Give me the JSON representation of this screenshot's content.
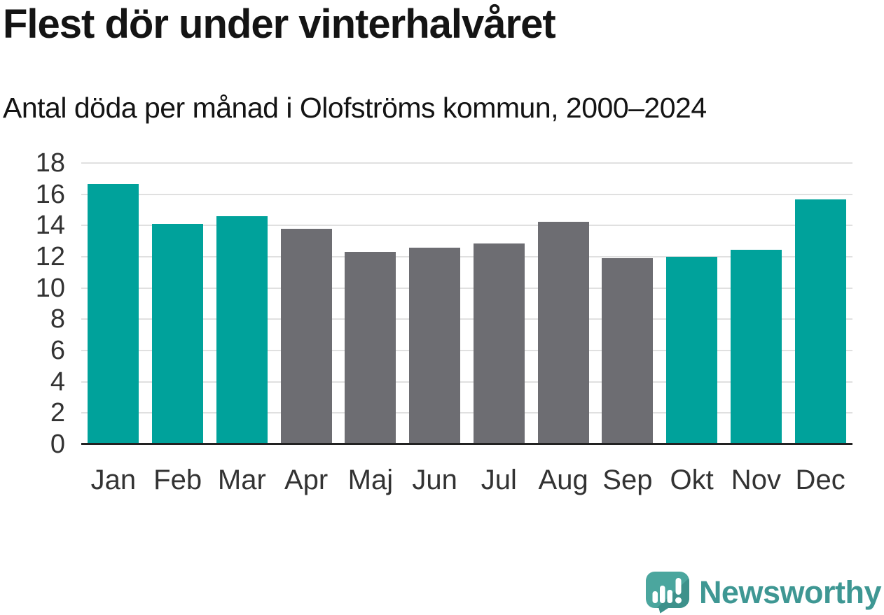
{
  "header": {
    "title": "Flest dör under vinterhalvåret",
    "subtitle": "Antal döda per månad i Olofströms kommun, 2000–2024"
  },
  "chart_data": {
    "type": "bar",
    "title": "Flest dör under vinterhalvåret",
    "subtitle": "Antal döda per månad i Olofströms kommun, 2000–2024",
    "categories": [
      "Jan",
      "Feb",
      "Mar",
      "Apr",
      "Maj",
      "Jun",
      "Jul",
      "Aug",
      "Sep",
      "Okt",
      "Nov",
      "Dec"
    ],
    "values": [
      16.65,
      14.1,
      14.6,
      13.8,
      12.3,
      12.6,
      12.85,
      14.25,
      11.9,
      12.0,
      12.45,
      15.65
    ],
    "bar_colors": [
      "#00a29b",
      "#00a29b",
      "#00a29b",
      "#6d6d72",
      "#6d6d72",
      "#6d6d72",
      "#6d6d72",
      "#6d6d72",
      "#6d6d72",
      "#00a29b",
      "#00a29b",
      "#00a29b"
    ],
    "xlabel": "",
    "ylabel": "",
    "ylim": [
      0,
      18
    ],
    "yticks": [
      0,
      2,
      4,
      6,
      8,
      10,
      12,
      14,
      16,
      18
    ],
    "grid": true,
    "legend": false,
    "colors": {
      "winter_highlight": "#00a29b",
      "summer_base": "#6d6d72",
      "gridline": "#e0e0e0",
      "axis_line": "#222222",
      "tick_label": "#333333",
      "title_text": "#141414"
    }
  },
  "footer": {
    "logo_text": "Newsworthy",
    "logo_text_color": "#3e9793",
    "logo_icon_color": "#4ba69e",
    "logo_icon_shade_color": "#3d918b"
  }
}
